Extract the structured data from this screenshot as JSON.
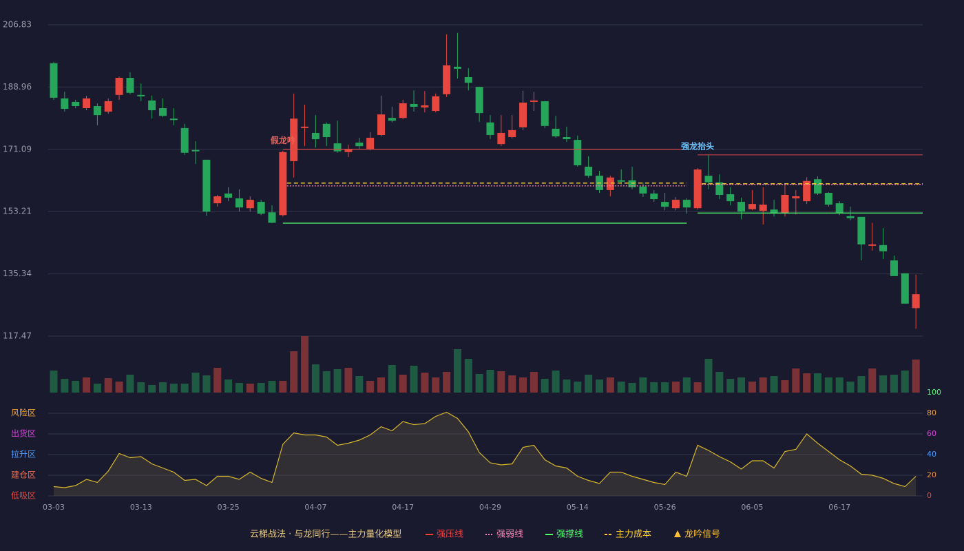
{
  "chart_data": {
    "type": "candlestick",
    "categories": [
      "03-03",
      null,
      null,
      null,
      null,
      null,
      null,
      null,
      "03-13",
      null,
      null,
      null,
      null,
      null,
      null,
      null,
      "03-25",
      null,
      null,
      null,
      null,
      null,
      null,
      null,
      "04-07",
      null,
      null,
      null,
      null,
      null,
      null,
      null,
      "04-17",
      null,
      null,
      null,
      null,
      null,
      null,
      null,
      "04-29",
      null,
      null,
      null,
      null,
      null,
      null,
      null,
      "05-14",
      null,
      null,
      null,
      null,
      null,
      null,
      null,
      "05-26",
      null,
      null,
      null,
      null,
      null,
      null,
      null,
      "06-05",
      null,
      null,
      null,
      null,
      null,
      null,
      null,
      "06-17",
      null,
      null,
      null,
      null,
      null,
      null,
      null
    ],
    "open": [
      195.8,
      185.7,
      184.7,
      182.9,
      183.5,
      181.9,
      186.7,
      191.6,
      186.7,
      185.1,
      182.9,
      179.9,
      177.2,
      170.9,
      168.1,
      155.6,
      158.4,
      157.0,
      154.2,
      156.0,
      153.0,
      152.2,
      167.7,
      177.2,
      175.8,
      178.4,
      172.8,
      170.3,
      173.0,
      171.2,
      175.2,
      180.1,
      180.1,
      184.1,
      183.1,
      182.1,
      186.9,
      194.8,
      191.8,
      189.0,
      178.8,
      172.6,
      174.6,
      177.4,
      184.7,
      184.9,
      177.0,
      174.6,
      173.8,
      166.1,
      163.5,
      159.4,
      162.2,
      162.2,
      160.4,
      158.4,
      156.0,
      154.2,
      156.6,
      154.2,
      163.5,
      161.6,
      158.2,
      156.0,
      153.9,
      153.4,
      153.8,
      152.8,
      157.0,
      156.2,
      162.5,
      158.6,
      155.6,
      151.9,
      151.7,
      143.4,
      143.6,
      139.2,
      135.5,
      125.5
    ],
    "close": [
      185.9,
      182.7,
      183.5,
      185.7,
      180.9,
      184.9,
      191.6,
      187.3,
      186.3,
      182.3,
      180.7,
      179.5,
      170.1,
      170.5,
      153.2,
      157.6,
      157.2,
      154.4,
      156.6,
      152.6,
      150.0,
      170.3,
      179.9,
      177.6,
      174.0,
      174.6,
      170.5,
      171.1,
      172.0,
      174.4,
      181.1,
      179.3,
      184.3,
      183.3,
      183.7,
      186.3,
      195.2,
      194.2,
      190.2,
      181.5,
      175.2,
      175.8,
      176.6,
      184.5,
      185.1,
      177.8,
      174.8,
      174.0,
      166.5,
      163.5,
      159.4,
      163.0,
      161.8,
      160.2,
      158.4,
      156.8,
      154.6,
      156.6,
      154.4,
      165.3,
      161.6,
      158.0,
      156.2,
      153.2,
      155.4,
      155.2,
      152.8,
      158.0,
      157.6,
      162.0,
      158.4,
      155.2,
      152.8,
      151.3,
      143.8,
      143.8,
      141.8,
      134.7,
      126.8,
      129.5
    ],
    "high": [
      196.2,
      187.6,
      185.3,
      186.5,
      184.3,
      185.7,
      192.0,
      193.2,
      190.0,
      186.5,
      185.7,
      182.9,
      178.4,
      173.4,
      168.1,
      158.0,
      160.2,
      159.6,
      157.6,
      156.6,
      155.0,
      170.7,
      187.1,
      183.9,
      180.9,
      178.8,
      179.3,
      172.4,
      174.4,
      176.0,
      186.5,
      183.3,
      185.3,
      188.0,
      187.8,
      187.1,
      204.1,
      204.5,
      194.4,
      189.0,
      180.9,
      180.9,
      180.9,
      187.9,
      187.6,
      184.9,
      180.7,
      177.6,
      175.0,
      169.1,
      164.9,
      163.5,
      165.3,
      166.1,
      161.6,
      159.4,
      158.6,
      157.4,
      157.0,
      165.7,
      169.7,
      163.9,
      160.2,
      157.2,
      159.4,
      160.2,
      156.6,
      161.2,
      159.4,
      163.1,
      163.3,
      158.8,
      156.2,
      154.6,
      151.7,
      150.0,
      148.5,
      140.6,
      135.5,
      135.1
    ],
    "low": [
      185.3,
      181.9,
      182.9,
      182.3,
      178.0,
      181.3,
      185.3,
      186.9,
      184.9,
      179.9,
      180.3,
      178.0,
      169.5,
      166.9,
      152.0,
      154.6,
      156.2,
      153.2,
      153.2,
      152.2,
      149.9,
      151.8,
      163.0,
      172.0,
      171.6,
      172.0,
      170.1,
      168.9,
      171.2,
      170.8,
      174.8,
      178.8,
      179.7,
      181.9,
      181.7,
      181.7,
      186.1,
      191.4,
      188.0,
      179.0,
      174.0,
      172.0,
      174.2,
      176.6,
      182.1,
      177.2,
      174.4,
      173.2,
      166.1,
      162.9,
      158.6,
      157.6,
      161.0,
      159.6,
      157.4,
      156.0,
      153.6,
      153.6,
      152.6,
      153.8,
      159.6,
      156.8,
      155.0,
      151.0,
      153.6,
      149.5,
      151.8,
      151.8,
      152.4,
      155.4,
      158.0,
      154.6,
      152.2,
      150.7,
      139.2,
      142.0,
      139.6,
      134.7,
      126.8,
      119.6
    ],
    "volume": [
      32,
      20,
      17,
      22,
      13,
      21,
      16,
      26,
      15,
      11,
      15,
      13,
      13,
      29,
      25,
      36,
      19,
      14,
      13,
      14,
      17,
      17,
      60,
      82,
      41,
      31,
      34,
      36,
      24,
      17,
      22,
      40,
      26,
      39,
      29,
      22,
      30,
      63,
      49,
      27,
      33,
      31,
      25,
      22,
      30,
      20,
      32,
      19,
      16,
      26,
      19,
      22,
      16,
      14,
      22,
      15,
      15,
      16,
      22,
      15,
      49,
      30,
      20,
      22,
      16,
      22,
      24,
      18,
      35,
      28,
      28,
      22,
      22,
      16,
      24,
      35,
      25,
      26,
      32,
      48
    ],
    "up_color": "#e8473f",
    "down_color": "#26a65b",
    "volume_up_color": "#7a3237",
    "volume_down_color": "#1f5a42",
    "ylim": [
      117.47,
      206.83
    ],
    "yticks": [
      117.47,
      135.34,
      153.21,
      171.09,
      188.96,
      206.83
    ],
    "grid": true,
    "signals": [
      {
        "label": "假龙吟",
        "label_color": "#e8625a",
        "start": 21,
        "end": 58,
        "resistance": 171.1,
        "weak": 160.6,
        "support": 149.9,
        "cost": 161.4,
        "resistance_color": "#d94a4a"
      },
      {
        "label": "强龙抬头",
        "label_color": "#6ec6ff",
        "start": 59,
        "end": 79,
        "resistance": 169.5,
        "weak": 161.0,
        "support": 152.8,
        "cost": 161.2,
        "resistance_color": "#a83a44"
      }
    ],
    "indicator": {
      "values": [
        9,
        8,
        10,
        16,
        13,
        24,
        41,
        37,
        38,
        31,
        27,
        23,
        15,
        16,
        10,
        19,
        19,
        16,
        23,
        17,
        13,
        50,
        61,
        59,
        59,
        57,
        49,
        51,
        54,
        59,
        67,
        63,
        72,
        69,
        70,
        77,
        81,
        75,
        62,
        42,
        32,
        30,
        31,
        47,
        49,
        35,
        29,
        27,
        19,
        15,
        12,
        23,
        23,
        19,
        16,
        13,
        11,
        23,
        19,
        49,
        44,
        38,
        33,
        26,
        34,
        34,
        27,
        43,
        45,
        60,
        51,
        43,
        35,
        29,
        21,
        20,
        17,
        12,
        9,
        19
      ],
      "color": "#d9b82c",
      "ylim": [
        0,
        100
      ],
      "yticks": [
        0,
        20,
        40,
        60,
        80,
        100
      ],
      "tick_colors": [
        "#e8473f",
        "#f0903a",
        "#4a9cff",
        "#e040e0",
        "#f0a030",
        "#50ff70"
      ],
      "zones": [
        {
          "value": 0,
          "label": "低吸区",
          "color": "#e8473f"
        },
        {
          "value": 20,
          "label": "建仓区",
          "color": "#f06a4a"
        },
        {
          "value": 40,
          "label": "拉升区",
          "color": "#4a9cff"
        },
        {
          "value": 60,
          "label": "出货区",
          "color": "#e040e0"
        },
        {
          "value": 80,
          "label": "风险区",
          "color": "#f0a030"
        }
      ]
    },
    "legend": {
      "title": "云梯战法 · 与龙同行——主力量化模型",
      "title_color": "#e8c880",
      "items": [
        {
          "name": "强压线",
          "color": "#f04040",
          "style": "solid"
        },
        {
          "name": "强弱线",
          "color": "#ff80b0",
          "style": "dotted"
        },
        {
          "name": "强撑线",
          "color": "#50ff70",
          "style": "solid"
        },
        {
          "name": "主力成本",
          "color": "#ffd030",
          "style": "dashed"
        },
        {
          "name": "龙吟信号",
          "color": "#ffc030",
          "style": "triangle"
        }
      ]
    }
  }
}
